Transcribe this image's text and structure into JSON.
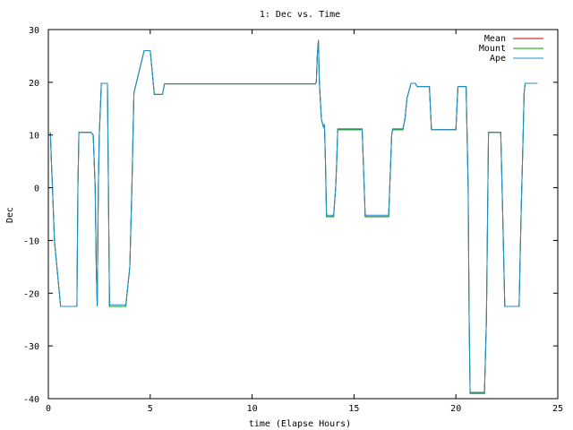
{
  "chart_data": {
    "type": "line",
    "title": "1: Dec vs. Time",
    "xlabel": "time (Elapse Hours)",
    "ylabel": "Dec",
    "xlim": [
      0,
      25
    ],
    "ylim": [
      -40,
      30
    ],
    "xticks": [
      0,
      5,
      10,
      15,
      20,
      25
    ],
    "yticks": [
      -40,
      -30,
      -20,
      -10,
      0,
      10,
      20,
      30
    ],
    "grid": false,
    "legend_position": "top-right",
    "series": [
      {
        "name": "Mean",
        "color": "#cc0000",
        "x": [
          0.1,
          0.15,
          0.2,
          0.3,
          0.6,
          1.4,
          1.45,
          1.5,
          1.8,
          2.1,
          2.2,
          2.3,
          2.35,
          2.4,
          2.45,
          2.5,
          2.6,
          2.9,
          2.95,
          3.0,
          3.8,
          4.0,
          4.1,
          4.2,
          4.7,
          4.9,
          5.0,
          5.2,
          5.6,
          5.7,
          13.0,
          13.1,
          13.15,
          13.2,
          13.25,
          13.3,
          13.4,
          13.5,
          13.55,
          13.6,
          13.65,
          14.0,
          14.1,
          14.15,
          14.2,
          15.4,
          15.5,
          15.55,
          15.6,
          16.7,
          16.8,
          16.85,
          16.9,
          17.4,
          17.5,
          17.6,
          17.8,
          18.0,
          18.1,
          18.3,
          18.7,
          18.8,
          19.0,
          19.5,
          20.0,
          20.1,
          20.2,
          20.5,
          20.6,
          20.65,
          20.7,
          20.8,
          21.4,
          21.5,
          21.6,
          22.2,
          22.3,
          22.4,
          23.1,
          23.2,
          23.3,
          23.35,
          23.4,
          23.5,
          23.7,
          23.8,
          24.0
        ],
        "y": [
          10.5,
          5,
          0,
          -10,
          -22.5,
          -22.5,
          0,
          10.5,
          10.5,
          10.5,
          10,
          0,
          -15,
          -22.5,
          0,
          10,
          19.8,
          19.8,
          0,
          -22.5,
          -22.5,
          -15,
          0,
          18,
          26,
          26,
          26,
          17.7,
          17.7,
          19.7,
          19.7,
          19.7,
          20,
          25,
          28,
          20,
          13,
          11.5,
          12,
          5,
          -5.5,
          -5.5,
          0,
          5,
          11,
          11,
          0,
          -5.5,
          -5.5,
          -5.5,
          5,
          10,
          11,
          11,
          13,
          17,
          19.8,
          19.8,
          19.2,
          19.2,
          19.2,
          11,
          11,
          11,
          11,
          19.2,
          19.2,
          19.2,
          0,
          -25,
          -39,
          -39,
          -39,
          -25,
          10.5,
          10.5,
          -5,
          -22.5,
          -22.5,
          -5,
          10,
          18,
          19.8,
          19.8,
          19.8,
          19.8,
          19.8
        ]
      },
      {
        "name": "Mount",
        "color": "#00a000",
        "x": [
          0.1,
          0.15,
          0.2,
          0.3,
          0.6,
          1.4,
          1.45,
          1.5,
          1.8,
          2.1,
          2.2,
          2.3,
          2.35,
          2.4,
          2.45,
          2.5,
          2.6,
          2.9,
          2.95,
          3.0,
          3.8,
          4.0,
          4.1,
          4.2,
          4.7,
          4.9,
          5.0,
          5.2,
          5.6,
          5.7,
          13.0,
          13.1,
          13.15,
          13.2,
          13.25,
          13.3,
          13.4,
          13.5,
          13.55,
          13.6,
          13.65,
          14.0,
          14.1,
          14.15,
          14.2,
          15.4,
          15.5,
          15.55,
          15.6,
          16.7,
          16.8,
          16.85,
          16.9,
          17.4,
          17.5,
          17.6,
          17.8,
          18.0,
          18.1,
          18.3,
          18.7,
          18.8,
          19.0,
          19.5,
          20.0,
          20.1,
          20.2,
          20.5,
          20.6,
          20.65,
          20.7,
          20.8,
          21.4,
          21.5,
          21.6,
          22.2,
          22.3,
          22.4,
          23.1,
          23.2,
          23.3,
          23.35,
          23.4,
          23.5,
          23.7,
          23.8,
          24.0
        ],
        "y": [
          10.5,
          5,
          0,
          -10,
          -22.5,
          -22.5,
          0,
          10.5,
          10.5,
          10.5,
          10,
          0,
          -15,
          -22.5,
          0,
          10,
          19.8,
          19.8,
          0,
          -22.5,
          -22.5,
          -15,
          0,
          18,
          26,
          26,
          26,
          17.7,
          17.7,
          19.7,
          19.7,
          19.7,
          20,
          25,
          28,
          20,
          13,
          11.5,
          12,
          5,
          -5.5,
          -5.5,
          0,
          5,
          11,
          11,
          0,
          -5.5,
          -5.5,
          -5.5,
          5,
          10,
          11,
          11,
          13,
          17,
          19.8,
          19.8,
          19.2,
          19.2,
          19.2,
          11,
          11,
          11,
          11,
          19.2,
          19.2,
          19.2,
          0,
          -25,
          -39,
          -39,
          -39,
          -25,
          10.5,
          10.5,
          -5,
          -22.5,
          -22.5,
          -5,
          10,
          18,
          19.8,
          19.8,
          19.8,
          19.8,
          19.8
        ]
      },
      {
        "name": "Ape",
        "color": "#1f8fd0",
        "x": [
          0.1,
          0.15,
          0.2,
          0.3,
          0.6,
          1.4,
          1.45,
          1.5,
          1.8,
          2.1,
          2.2,
          2.3,
          2.35,
          2.4,
          2.45,
          2.5,
          2.6,
          2.9,
          2.95,
          3.0,
          3.8,
          4.0,
          4.1,
          4.2,
          4.7,
          4.9,
          5.0,
          5.2,
          5.6,
          5.7,
          13.0,
          13.1,
          13.15,
          13.2,
          13.25,
          13.3,
          13.4,
          13.5,
          13.55,
          13.6,
          13.65,
          14.0,
          14.1,
          14.15,
          14.2,
          15.4,
          15.5,
          15.55,
          15.6,
          16.7,
          16.8,
          16.85,
          16.9,
          17.4,
          17.5,
          17.6,
          17.8,
          18.0,
          18.1,
          18.3,
          18.7,
          18.8,
          19.0,
          19.5,
          20.0,
          20.1,
          20.2,
          20.5,
          20.6,
          20.65,
          20.7,
          20.8,
          21.4,
          21.5,
          21.6,
          22.2,
          22.3,
          22.4,
          23.1,
          23.2,
          23.3,
          23.35,
          23.4,
          23.5,
          23.7,
          23.8,
          24.0
        ],
        "y": [
          10.5,
          5,
          0,
          -10,
          -22.5,
          -22.5,
          0,
          10.5,
          10.5,
          10.5,
          10,
          0,
          -15,
          -22.5,
          0,
          10,
          19.8,
          19.8,
          0,
          -22.2,
          -22.2,
          -15,
          0,
          18,
          26,
          26,
          26,
          17.7,
          17.7,
          19.7,
          19.7,
          19.7,
          20,
          25,
          28,
          20,
          13,
          11.5,
          12,
          5,
          -5.2,
          -5.2,
          0,
          5,
          11.2,
          11.2,
          0,
          -5.2,
          -5.2,
          -5.2,
          5,
          10,
          11.2,
          11.2,
          13,
          17,
          19.8,
          19.8,
          19.2,
          19.2,
          19.2,
          11,
          11,
          11,
          11,
          19.2,
          19.2,
          19.2,
          0,
          -25,
          -38.8,
          -38.8,
          -38.8,
          -25,
          10.5,
          10.5,
          -5,
          -22.5,
          -22.5,
          -5,
          10,
          18,
          19.8,
          19.8,
          19.8,
          19.8,
          19.8
        ]
      }
    ]
  }
}
